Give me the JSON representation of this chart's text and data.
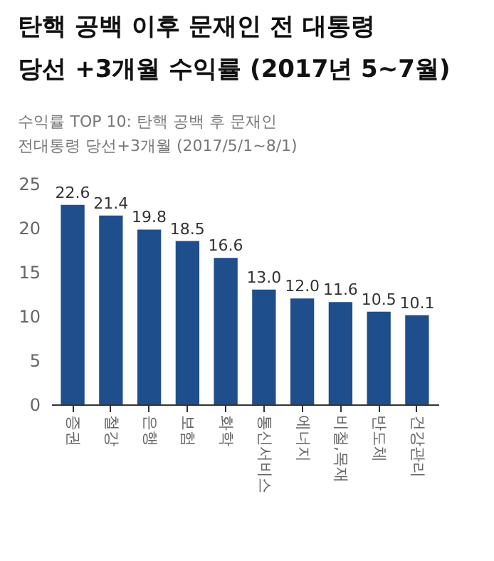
{
  "chart_data": {
    "type": "bar",
    "title": "탄핵 공백 이후 문재인 전 대통령 당선 +3개월 수익률 (2017년 5~7월)",
    "subtitle": "수익률 TOP 10: 탄핵 공백 후 문재인 전대통령 당선+3개월 (2017/5/1~8/1)",
    "categories": [
      "증권",
      "철강",
      "은행",
      "보험",
      "화학",
      "통신서비스",
      "에너지",
      "비철,목재",
      "반도체",
      "건강관리"
    ],
    "values": [
      22.6,
      21.4,
      19.8,
      18.5,
      16.6,
      13.0,
      12.0,
      11.6,
      10.5,
      10.1
    ],
    "value_labels": [
      "22.6",
      "21.4",
      "19.8",
      "18.5",
      "16.6",
      "13.0",
      "12.0",
      "11.6",
      "10.5",
      "10.1"
    ],
    "color": "#1f4e8c",
    "ylim": [
      0,
      25
    ],
    "yticks": [
      0,
      5,
      10,
      15,
      20,
      25
    ],
    "grid": false
  }
}
